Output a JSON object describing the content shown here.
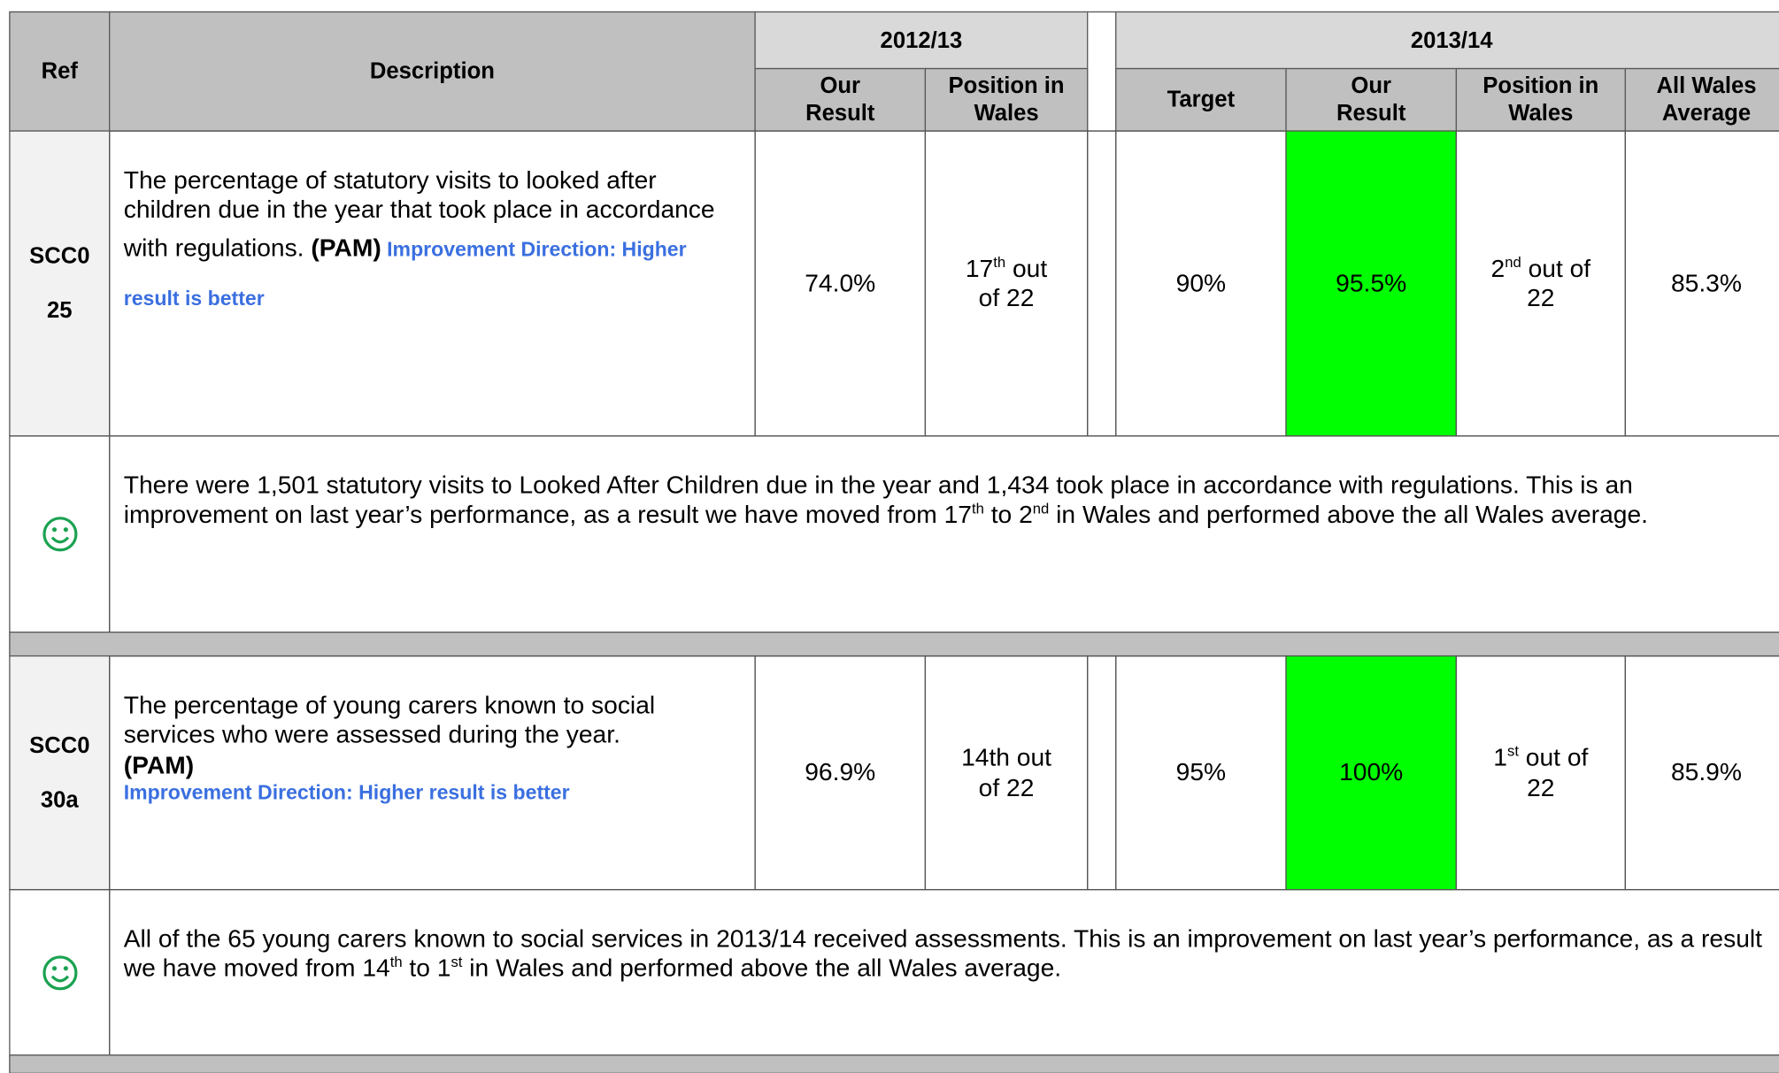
{
  "header": {
    "ref": "Ref",
    "description": "Description",
    "year1": {
      "label": "2012/13",
      "columns": [
        "Our Result",
        "Position in Wales"
      ]
    },
    "year2": {
      "label": "2013/14",
      "columns": [
        "Target",
        "Our Result",
        "Position in Wales",
        "All Wales Average"
      ]
    }
  },
  "rows": [
    {
      "ref_lines": [
        "SCC0",
        "25"
      ],
      "description": {
        "text": "The percentage of statutory visits to looked after children due in the year that took place in accordance with regulations. ",
        "pam": "(PAM)",
        "direction": " Improvement Direction: Higher result is better"
      },
      "y1_result": "74.0%",
      "y1_position": {
        "n": "17",
        "sup": "th",
        "rest": " out of 22"
      },
      "target": "90%",
      "y2_result": "95.5%",
      "result_color": "#00ff00",
      "y2_position": {
        "n": "2",
        "sup": "nd",
        "rest": " out of 22"
      },
      "wales_average": "85.3%",
      "comment": [
        "There were 1,501 statutory visits to Looked After Children due in the year and 1,434 took place in accordance with regulations. This is an improvement on last year’s performance, as a result we have moved from 17",
        {
          "sup": "th"
        },
        " to 2",
        {
          "sup": "nd"
        },
        " in Wales and performed above the all Wales average."
      ]
    },
    {
      "ref_lines": [
        "SCC0",
        "30a"
      ],
      "description": {
        "text": "The percentage of young carers known to social services who were assessed during the year.",
        "pam": "(PAM)",
        "direction": "Improvement Direction: Higher result is better"
      },
      "y1_result": "96.9%",
      "y1_position": "14th out of 22",
      "target": "95%",
      "y2_result": "100%",
      "result_color": "#00ff00",
      "y2_position": {
        "n": "1",
        "sup": "st",
        "rest": " out of 22"
      },
      "wales_average": "85.9%",
      "comment": [
        "All of the 65 young carers known to social services in 2013/14 received assessments. This is an improvement on last year’s performance, as a result we have moved from 14",
        {
          "sup": "th"
        },
        " to 1",
        {
          "sup": "st"
        },
        " in Wales and performed above the all Wales average."
      ]
    }
  ]
}
